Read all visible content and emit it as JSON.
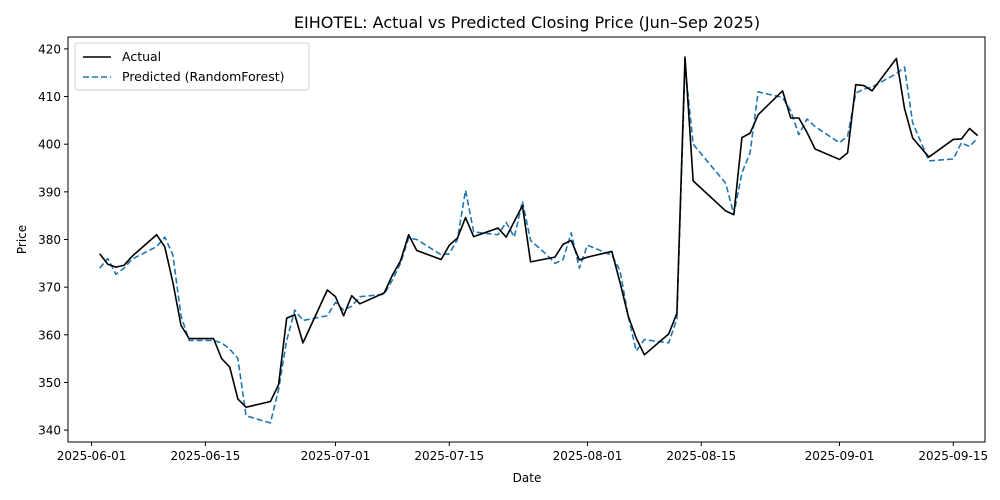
{
  "chart_data": {
    "type": "line",
    "title": "EIHOTEL: Actual vs Predicted Closing Price (Jun–Sep 2025)",
    "xlabel": "Date",
    "ylabel": "Price",
    "ylim": [
      337.5,
      422.5
    ],
    "xlim_days": [
      -2.9,
      109.9
    ],
    "date_origin": "2025-06-01",
    "y_ticks": [
      340,
      350,
      360,
      370,
      380,
      390,
      400,
      410,
      420
    ],
    "x_ticks": [
      {
        "day": 0,
        "label": "2025-06-01"
      },
      {
        "day": 14,
        "label": "2025-06-15"
      },
      {
        "day": 30,
        "label": "2025-07-01"
      },
      {
        "day": 44,
        "label": "2025-07-15"
      },
      {
        "day": 61,
        "label": "2025-08-01"
      },
      {
        "day": 75,
        "label": "2025-08-15"
      },
      {
        "day": 92,
        "label": "2025-09-01"
      },
      {
        "day": 106,
        "label": "2025-09-15"
      }
    ],
    "legend": {
      "position": "top-left"
    },
    "series": [
      {
        "name": "Actual",
        "color": "#000000",
        "style": "solid",
        "points": [
          [
            1,
            377
          ],
          [
            2,
            374.8
          ],
          [
            3,
            374.2
          ],
          [
            4,
            374.6
          ],
          [
            5,
            376.5
          ],
          [
            8,
            381
          ],
          [
            9,
            378.5
          ],
          [
            10,
            371
          ],
          [
            11,
            362
          ],
          [
            12,
            359.2
          ],
          [
            15,
            359.2
          ],
          [
            16,
            355
          ],
          [
            17,
            353.2
          ],
          [
            18,
            346.5
          ],
          [
            19,
            344.8
          ],
          [
            22,
            346
          ],
          [
            23,
            349.5
          ],
          [
            24,
            363.5
          ],
          [
            25,
            364.2
          ],
          [
            26,
            358.3
          ],
          [
            29,
            369.4
          ],
          [
            30,
            368
          ],
          [
            31,
            364
          ],
          [
            32,
            368.2
          ],
          [
            33,
            366.5
          ],
          [
            36,
            368.8
          ],
          [
            37,
            372.5
          ],
          [
            38,
            375.5
          ],
          [
            39,
            381
          ],
          [
            40,
            377.7
          ],
          [
            43,
            375.8
          ],
          [
            44,
            378.8
          ],
          [
            45,
            380.3
          ],
          [
            46,
            384.6
          ],
          [
            47,
            380.6
          ],
          [
            50,
            382.4
          ],
          [
            51,
            380.5
          ],
          [
            53,
            387.1
          ],
          [
            54,
            375.3
          ],
          [
            57,
            376.3
          ],
          [
            58,
            379
          ],
          [
            59,
            379.8
          ],
          [
            60,
            375.7
          ],
          [
            61,
            376.3
          ],
          [
            64,
            377.5
          ],
          [
            65,
            371
          ],
          [
            66,
            364
          ],
          [
            67,
            359.3
          ],
          [
            68,
            355.8
          ],
          [
            71,
            360.2
          ],
          [
            72,
            364.5
          ],
          [
            73,
            418.3
          ],
          [
            74,
            392.3
          ],
          [
            78,
            386
          ],
          [
            79,
            385.2
          ],
          [
            80,
            401.4
          ],
          [
            81,
            402.3
          ],
          [
            82,
            406.2
          ],
          [
            85,
            411.2
          ],
          [
            86,
            405.5
          ],
          [
            87,
            405.5
          ],
          [
            88,
            402.5
          ],
          [
            89,
            399
          ],
          [
            92,
            396.8
          ],
          [
            93,
            398.2
          ],
          [
            94,
            412.5
          ],
          [
            95,
            412.3
          ],
          [
            96,
            411.2
          ],
          [
            99,
            418
          ],
          [
            100,
            407.5
          ],
          [
            101,
            401.3
          ],
          [
            103,
            397.3
          ],
          [
            106,
            401
          ],
          [
            107,
            401.1
          ],
          [
            108,
            403.3
          ],
          [
            109,
            401.8
          ]
        ]
      },
      {
        "name": "Predicted (RandomForest)",
        "color": "#1f77b4",
        "style": "dashed",
        "points": [
          [
            1,
            374
          ],
          [
            2,
            376
          ],
          [
            3,
            372.7
          ],
          [
            4,
            374
          ],
          [
            5,
            375.9
          ],
          [
            8,
            378.5
          ],
          [
            9,
            380.5
          ],
          [
            10,
            376.8
          ],
          [
            11,
            364
          ],
          [
            12,
            358.8
          ],
          [
            15,
            358.8
          ],
          [
            16,
            358.3
          ],
          [
            17,
            357
          ],
          [
            18,
            355
          ],
          [
            19,
            343
          ],
          [
            22,
            341.5
          ],
          [
            23,
            348.5
          ],
          [
            24,
            358.8
          ],
          [
            25,
            365.2
          ],
          [
            26,
            363
          ],
          [
            29,
            364
          ],
          [
            30,
            366.8
          ],
          [
            31,
            365.2
          ],
          [
            32,
            366
          ],
          [
            33,
            368
          ],
          [
            36,
            368.5
          ],
          [
            37,
            371.5
          ],
          [
            38,
            375
          ],
          [
            39,
            380.3
          ],
          [
            40,
            380
          ],
          [
            43,
            376.8
          ],
          [
            44,
            377
          ],
          [
            45,
            380
          ],
          [
            46,
            390.3
          ],
          [
            47,
            381.6
          ],
          [
            50,
            381
          ],
          [
            51,
            383.6
          ],
          [
            52,
            380.5
          ],
          [
            53,
            388
          ],
          [
            54,
            379.8
          ],
          [
            56,
            376.8
          ],
          [
            57,
            375
          ],
          [
            58,
            375.8
          ],
          [
            59,
            381.4
          ],
          [
            60,
            374
          ],
          [
            61,
            378.8
          ],
          [
            64,
            376.7
          ],
          [
            65,
            373.5
          ],
          [
            66,
            364
          ],
          [
            67,
            356.6
          ],
          [
            68,
            359
          ],
          [
            71,
            358.3
          ],
          [
            72,
            363.4
          ],
          [
            73,
            416.5
          ],
          [
            74,
            400
          ],
          [
            78,
            391.8
          ],
          [
            79,
            385.3
          ],
          [
            80,
            394
          ],
          [
            81,
            398.2
          ],
          [
            82,
            411
          ],
          [
            85,
            409.8
          ],
          [
            86,
            407
          ],
          [
            87,
            402
          ],
          [
            88,
            405.3
          ],
          [
            89,
            403.7
          ],
          [
            92,
            400.3
          ],
          [
            93,
            401.7
          ],
          [
            94,
            410.7
          ],
          [
            95,
            411.6
          ],
          [
            96,
            412
          ],
          [
            99,
            414.8
          ],
          [
            100,
            416.2
          ],
          [
            101,
            404.5
          ],
          [
            103,
            396.5
          ],
          [
            106,
            396.9
          ],
          [
            107,
            400.3
          ],
          [
            108,
            399.5
          ],
          [
            109,
            401.3
          ]
        ]
      }
    ]
  }
}
